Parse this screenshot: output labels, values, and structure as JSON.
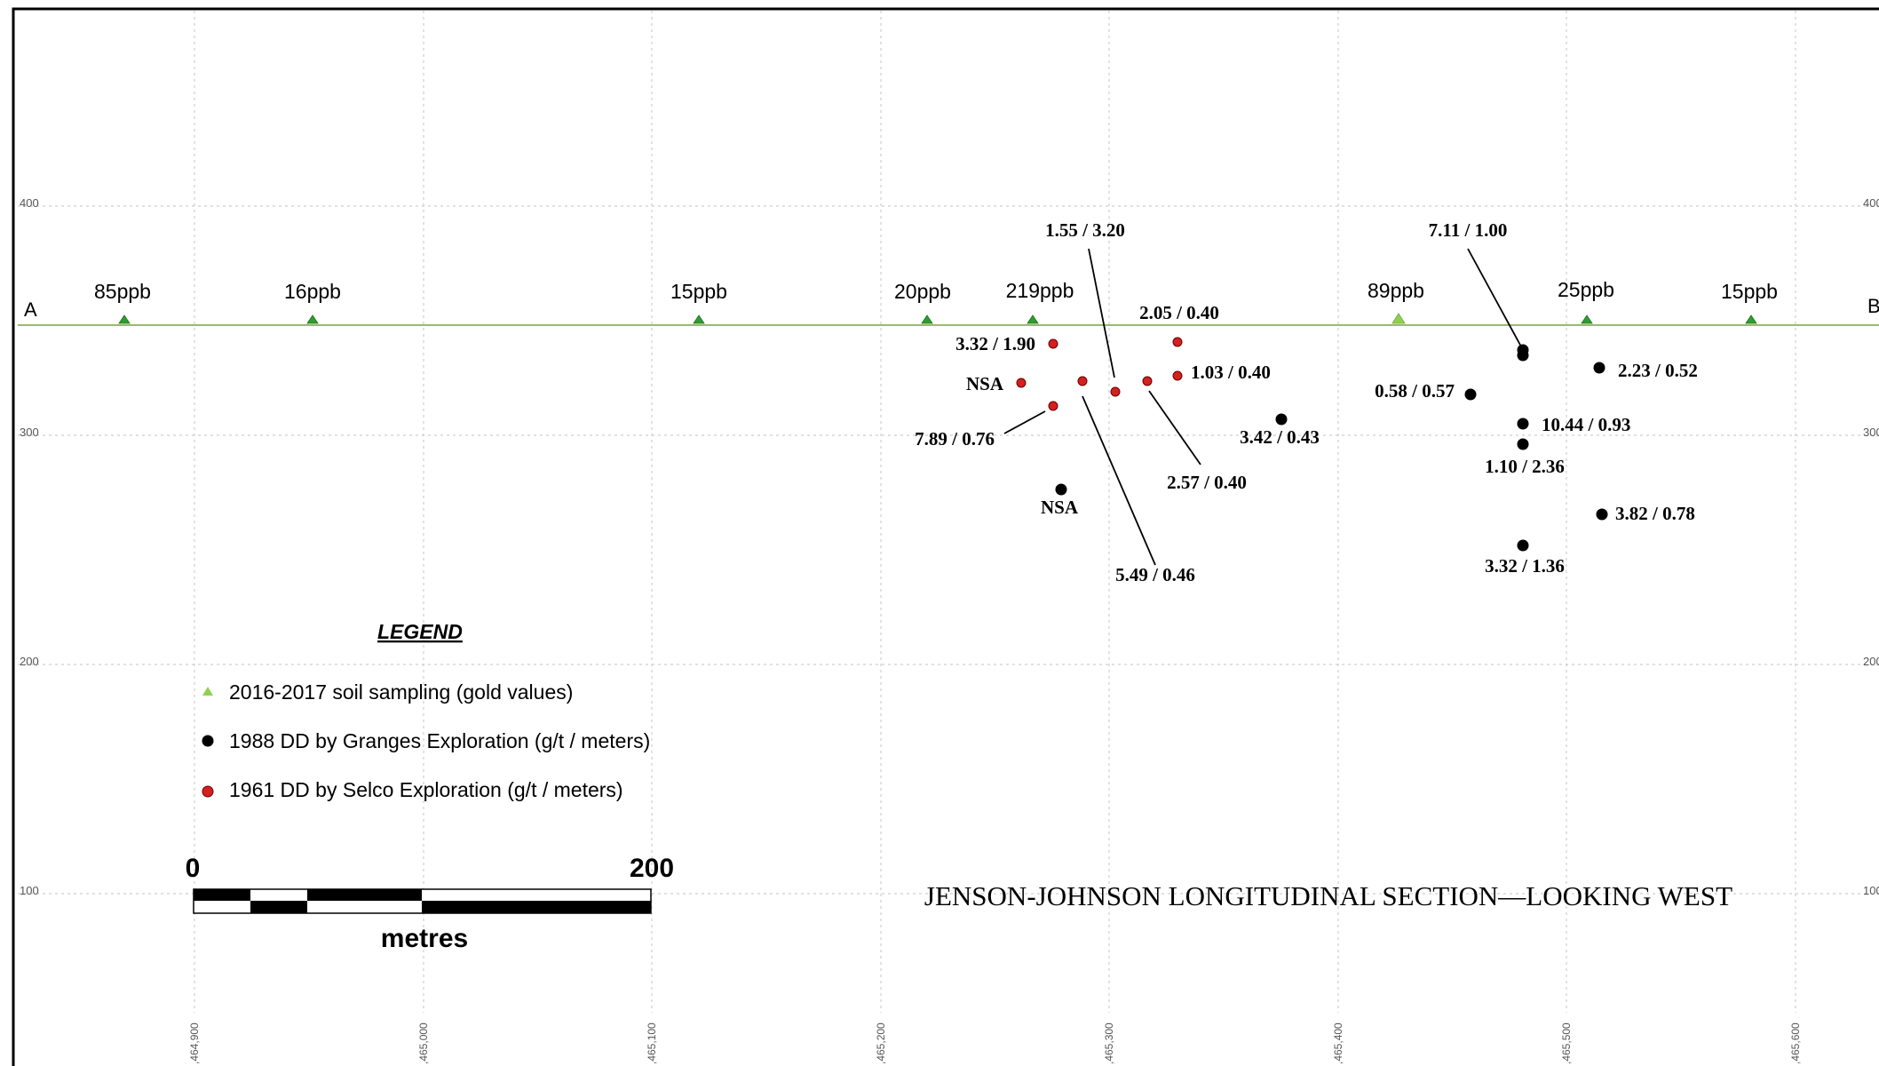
{
  "section": {
    "title": "JENSON-JOHNSON LONGITUDINAL SECTION—LOOKING WEST",
    "end_left": "A",
    "end_right": "B"
  },
  "elevation_labels": [
    "400",
    "300",
    "200",
    "100"
  ],
  "easting_labels": [
    ",464,900",
    ",465,000",
    ",465,100",
    ",465,200",
    ",465,300",
    ",465,400",
    ",465,500",
    ",465,600"
  ],
  "soil_samples": [
    {
      "label": "85ppb",
      "color": "#2e9e2e"
    },
    {
      "label": "16ppb",
      "color": "#2e9e2e"
    },
    {
      "label": "15ppb",
      "color": "#2e9e2e"
    },
    {
      "label": "20ppb",
      "color": "#2e9e2e"
    },
    {
      "label": "219ppb",
      "color": "#2e9e2e"
    },
    {
      "label": "89ppb",
      "color": "#8fd14f"
    },
    {
      "label": "25ppb",
      "color": "#2e9e2e"
    },
    {
      "label": "15ppb",
      "color": "#2e9e2e"
    }
  ],
  "granges_holes": [
    {
      "label": "7.11 / 1.00"
    },
    {
      "label": "2.23 / 0.52"
    },
    {
      "label": "0.58 / 0.57"
    },
    {
      "label": "10.44 / 0.93"
    },
    {
      "label": "1.10 / 2.36"
    },
    {
      "label": "3.42 / 0.43"
    },
    {
      "label": "3.82 / 0.78"
    },
    {
      "label": "3.32 / 1.36"
    },
    {
      "label": "NSA"
    }
  ],
  "selco_holes": [
    {
      "label": "3.32 / 1.90"
    },
    {
      "label": "2.05 / 0.40"
    },
    {
      "label": "1.03 / 0.40"
    },
    {
      "label": "NSA"
    },
    {
      "label": "7.89 / 0.76"
    },
    {
      "label": "1.55 / 3.20"
    },
    {
      "label": "2.57 / 0.40"
    },
    {
      "label": "5.49 / 0.46"
    }
  ],
  "legend": {
    "title": "LEGEND",
    "items": [
      {
        "label": "2016-2017 soil sampling (gold values)",
        "symbol": "triangle",
        "color": "#8fd14f"
      },
      {
        "label": "1988 DD by Granges Exploration (g/t / meters)",
        "symbol": "circle",
        "color": "#000000"
      },
      {
        "label": "1961 DD by Selco Exploration (g/t / meters)",
        "symbol": "circle",
        "color": "#d42020"
      }
    ]
  },
  "scale_bar": {
    "start_label": "0",
    "end_label": "200",
    "unit": "metres"
  },
  "colors": {
    "section_line": "#7aa33a",
    "grid": "#cccccc",
    "soil_triangle": "#2e9e2e",
    "selco_red": "#d42020",
    "granges_black": "#000000"
  }
}
